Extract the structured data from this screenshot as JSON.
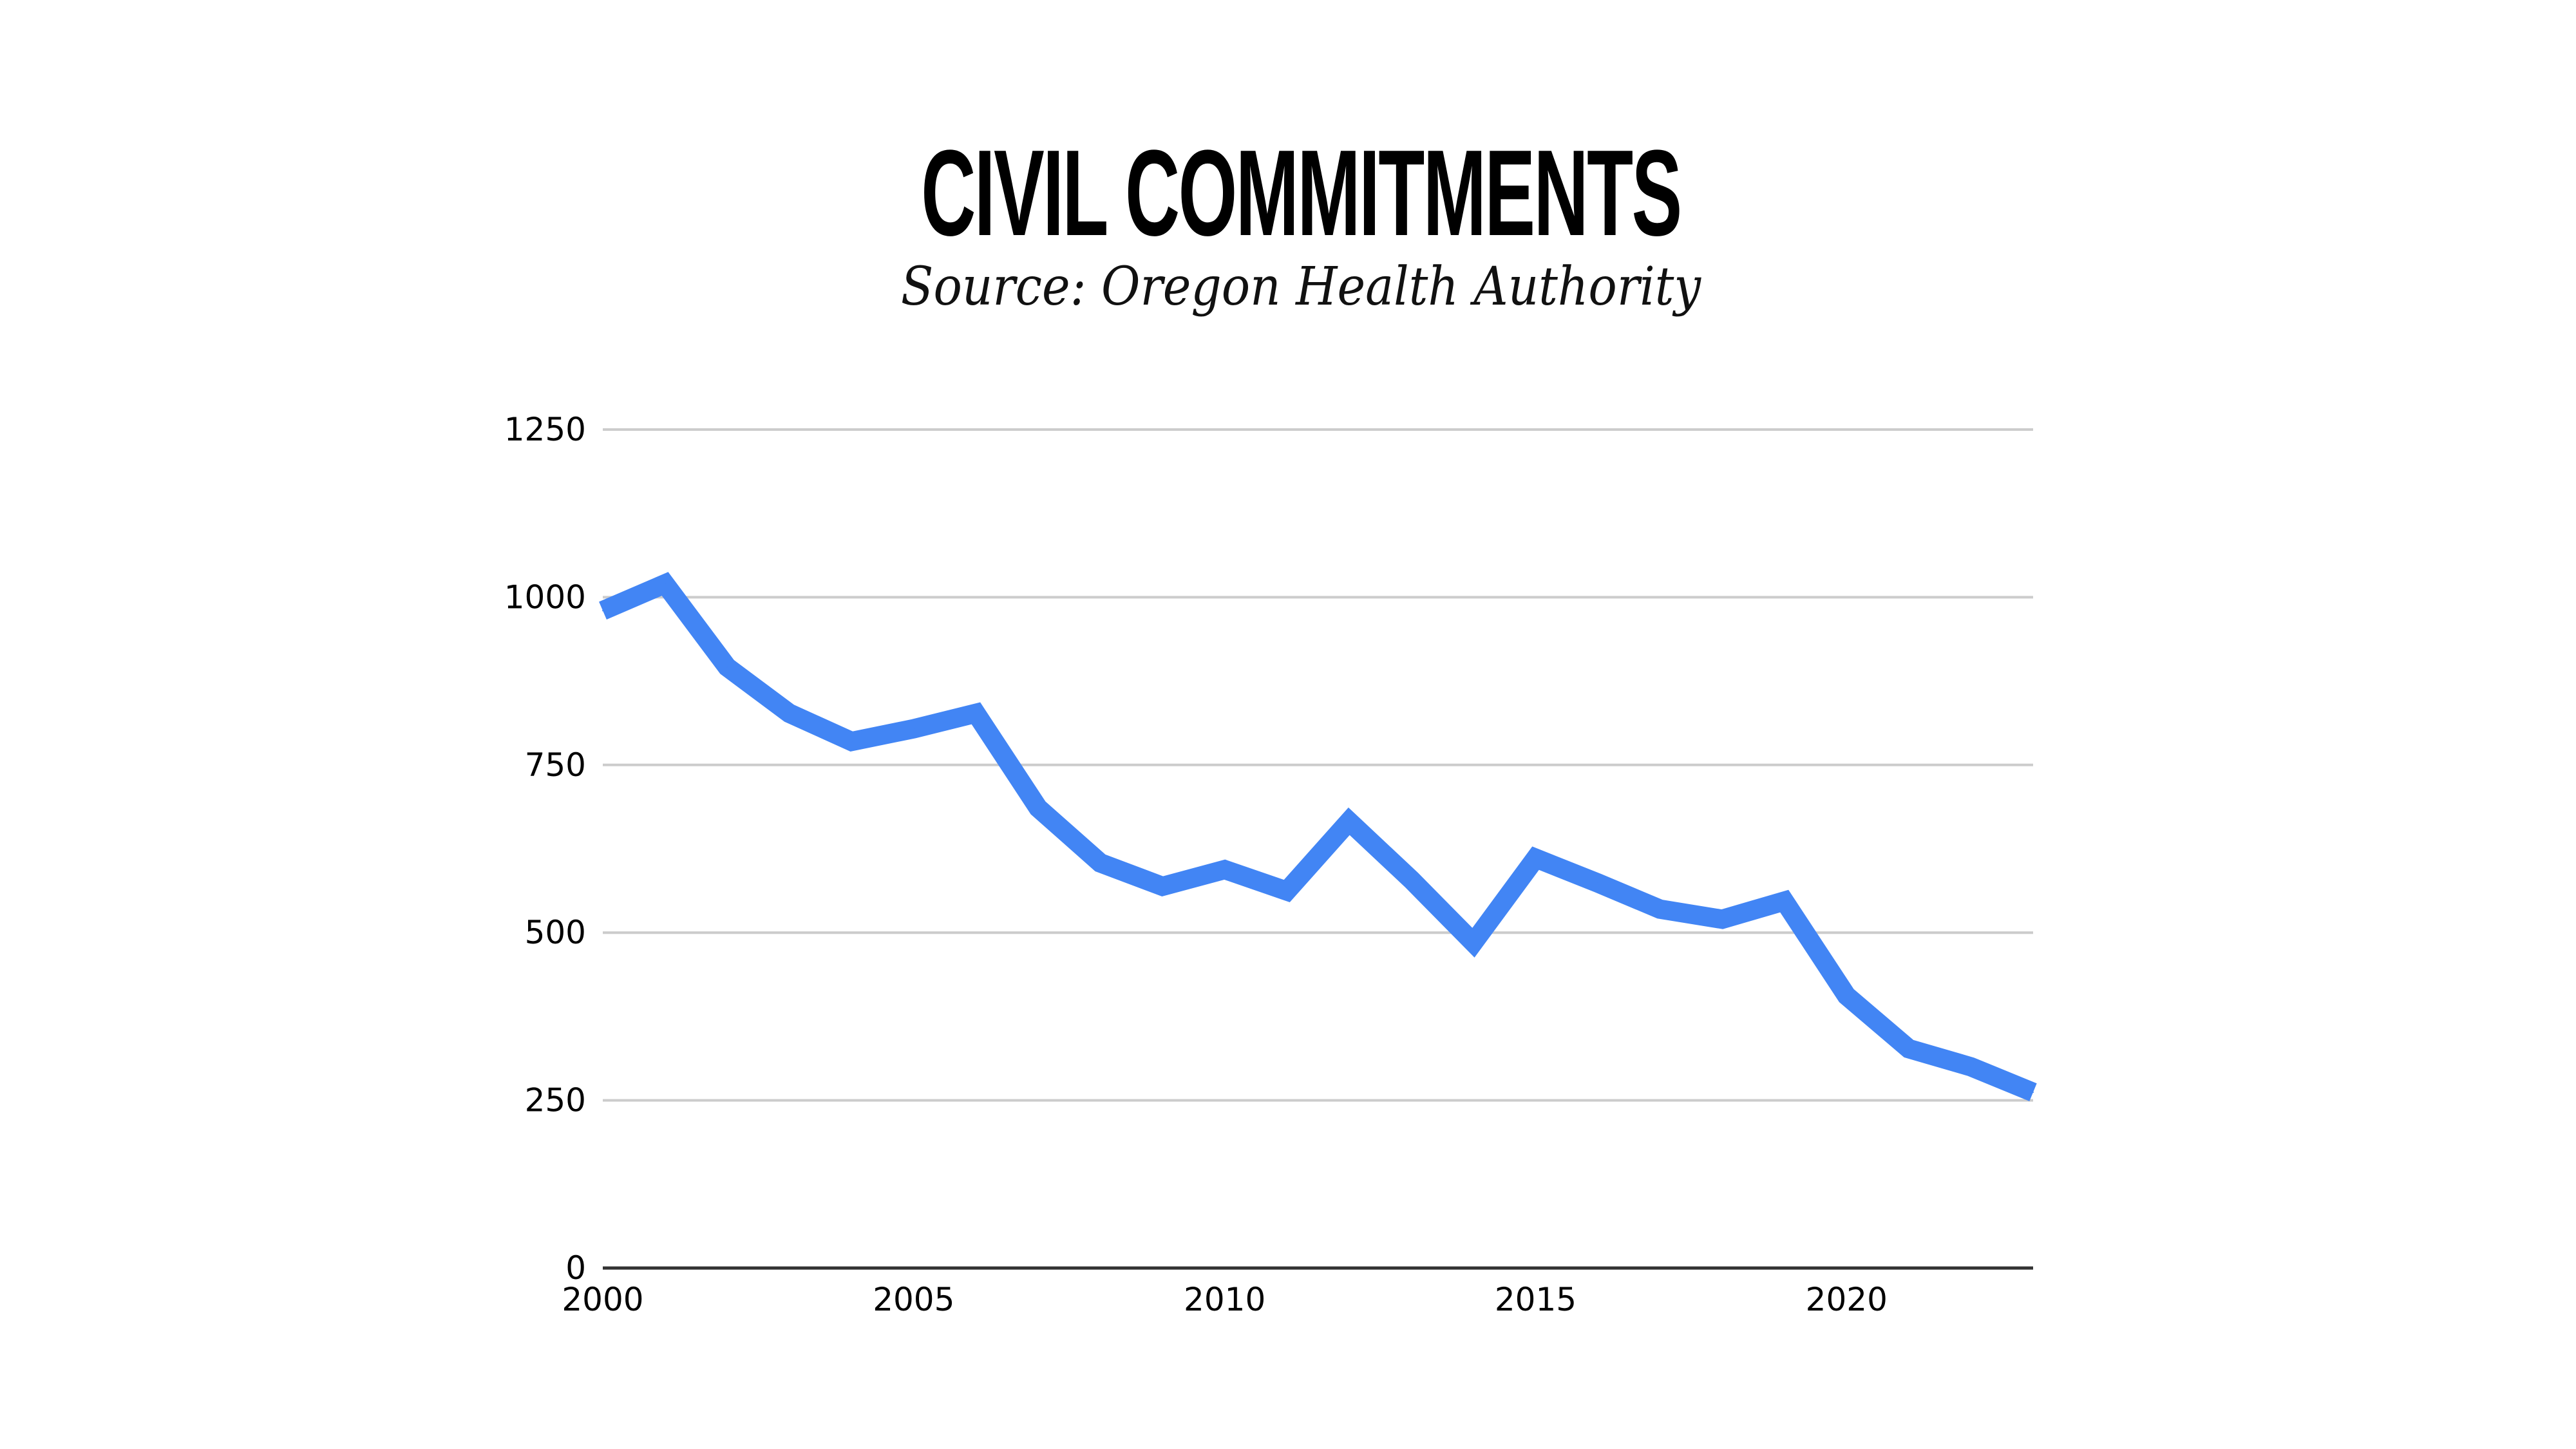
{
  "header": {
    "title": "CIVIL COMMITMENTS",
    "subtitle": "Source: Oregon Health Authority"
  },
  "colors": {
    "line": "#4285F4",
    "grid": "#cccccc",
    "axis": "#333333",
    "text": "#000000"
  },
  "chart_data": {
    "type": "line",
    "title": "CIVIL COMMITMENTS",
    "subtitle": "Source: Oregon Health Authority",
    "xlabel": "",
    "ylabel": "",
    "x": [
      2000,
      2001,
      2002,
      2003,
      2004,
      2005,
      2006,
      2007,
      2008,
      2009,
      2010,
      2011,
      2012,
      2013,
      2014,
      2015,
      2016,
      2017,
      2018,
      2019,
      2020,
      2021,
      2022,
      2023
    ],
    "series": [
      {
        "name": "Civil commitments",
        "values": [
          980,
          1020,
          896,
          827,
          785,
          804,
          827,
          686,
          604,
          569,
          594,
          562,
          666,
          579,
          485,
          611,
          574,
          535,
          520,
          547,
          406,
          327,
          300,
          262
        ]
      }
    ],
    "xlim": [
      2000,
      2023
    ],
    "ylim": [
      0,
      1250
    ],
    "yticks": [
      0,
      250,
      500,
      750,
      1000,
      1250
    ],
    "ytick_labels": [
      "0",
      "250",
      "500",
      "750",
      "1000",
      "1250"
    ],
    "xticks": [
      2000,
      2005,
      2010,
      2015,
      2020
    ],
    "xtick_labels": [
      "2000",
      "2005",
      "2010",
      "2015",
      "2020"
    ],
    "grid": true,
    "legend": "none"
  }
}
